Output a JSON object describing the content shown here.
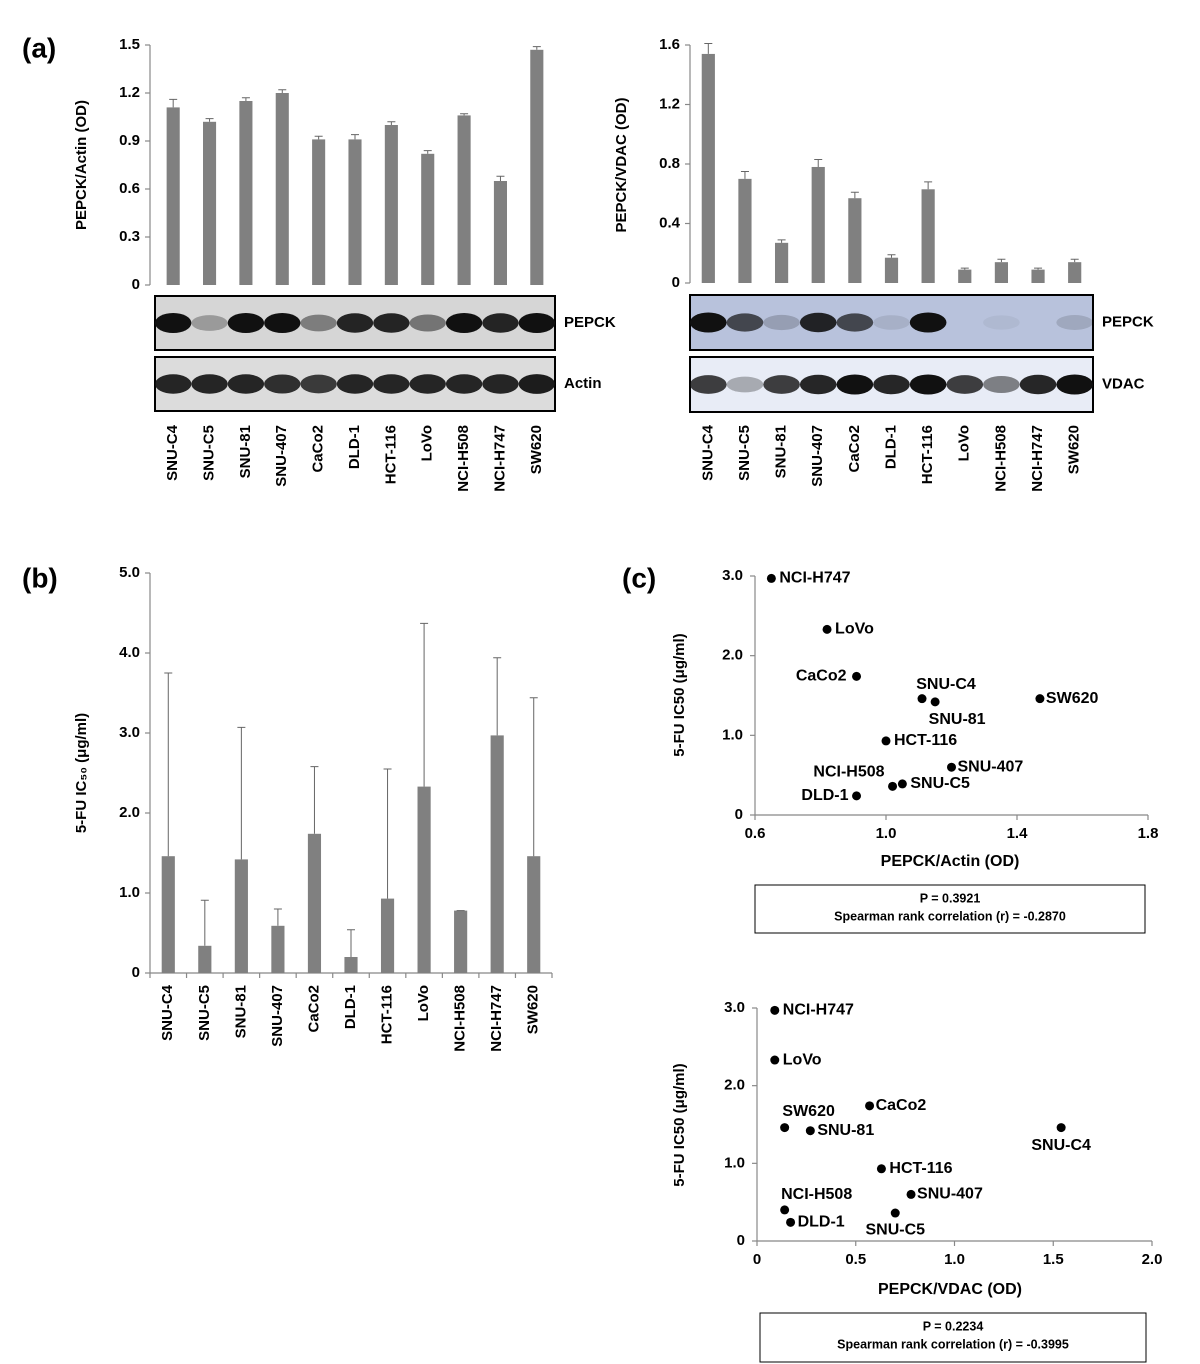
{
  "panel_labels": [
    "(a)",
    "(b)",
    "(c)"
  ],
  "chart_data": [
    {
      "type": "bar",
      "y_label": "PEPCK/Actin (OD)",
      "color": "#808080",
      "categories": [
        "SNU-C4",
        "SNU-C5",
        "SNU-81",
        "SNU-407",
        "CaCo2",
        "DLD-1",
        "HCT-116",
        "LoVo",
        "NCI-H508",
        "NCI-H747",
        "SW620"
      ],
      "values": [
        1.11,
        1.02,
        1.15,
        1.2,
        0.91,
        0.91,
        1.0,
        0.82,
        1.06,
        0.65,
        1.47
      ],
      "errors": [
        0.05,
        0.02,
        0.02,
        0.02,
        0.02,
        0.03,
        0.02,
        0.02,
        0.01,
        0.03,
        0.02
      ],
      "ylim": [
        0,
        1.5
      ],
      "yticks": [
        0,
        0.3,
        0.6,
        0.9,
        1.2,
        1.5
      ],
      "blot_labels": [
        "PEPCK",
        "Actin"
      ]
    },
    {
      "type": "bar",
      "y_label": "PEPCK/VDAC (OD)",
      "color": "#808080",
      "categories": [
        "SNU-C4",
        "SNU-C5",
        "SNU-81",
        "SNU-407",
        "CaCo2",
        "DLD-1",
        "HCT-116",
        "LoVo",
        "NCI-H508",
        "NCI-H747",
        "SW620"
      ],
      "values": [
        1.54,
        0.7,
        0.27,
        0.78,
        0.57,
        0.17,
        0.63,
        0.09,
        0.14,
        0.09,
        0.14
      ],
      "errors": [
        0.07,
        0.05,
        0.02,
        0.05,
        0.04,
        0.02,
        0.05,
        0.01,
        0.02,
        0.01,
        0.02
      ],
      "ylim": [
        0,
        1.6
      ],
      "yticks": [
        0,
        0.4,
        0.8,
        1.2,
        1.6
      ],
      "blot_labels": [
        "PEPCK",
        "VDAC"
      ]
    },
    {
      "type": "bar",
      "y_label": "5-FU IC₅₀ (μg/ml)",
      "color": "#808080",
      "categories": [
        "SNU-C4",
        "SNU-C5",
        "SNU-81",
        "SNU-407",
        "CaCo2",
        "DLD-1",
        "HCT-116",
        "LoVo",
        "NCI-H508",
        "NCI-H747",
        "SW620"
      ],
      "values": [
        1.46,
        0.34,
        1.42,
        0.59,
        1.74,
        0.2,
        0.93,
        2.33,
        0.78,
        2.97,
        1.46
      ],
      "errors": [
        2.29,
        0.57,
        1.65,
        0.21,
        0.84,
        0.34,
        1.62,
        2.04,
        0,
        0.97,
        1.98
      ],
      "ylim": [
        0,
        5
      ],
      "yticks": [
        0,
        {
          "value": 1,
          "label": "1.0"
        },
        {
          "value": 2,
          "label": "2.0"
        },
        {
          "value": 3,
          "label": "3.0"
        },
        {
          "value": 4,
          "label": "4.0"
        },
        {
          "value": 5,
          "label": "5.0"
        }
      ]
    },
    {
      "type": "scatter",
      "x_label": "PEPCK/Actin (OD)",
      "y_label": "5-FU IC50 (μg/ml)",
      "color": "#000000",
      "labels": [
        "SNU-C4",
        "SNU-C5",
        "SNU-81",
        "SNU-407",
        "CaCo2",
        "DLD-1",
        "HCT-116",
        "LoVo",
        "NCI-H508",
        "NCI-H747",
        "SW620"
      ],
      "x": [
        1.11,
        1.05,
        1.15,
        1.2,
        0.91,
        0.91,
        1.0,
        0.82,
        1.02,
        0.65,
        1.47
      ],
      "y": [
        1.46,
        0.39,
        1.42,
        0.6,
        1.74,
        0.24,
        0.93,
        2.33,
        0.36,
        2.97,
        1.46
      ],
      "xlim": [
        0.6,
        1.8
      ],
      "xticks": [
        0.6,
        {
          "value": 1,
          "label": "1.0"
        },
        1.4,
        1.8
      ],
      "ylim": [
        0,
        3
      ],
      "yticks": [
        0,
        {
          "value": 1,
          "label": "1.0"
        },
        {
          "value": 2,
          "label": "2.0"
        },
        {
          "value": 3,
          "label": "3.0"
        }
      ],
      "annotations": [
        "P = 0.3921",
        "Spearman  rank correlation (r) = -0.2870"
      ]
    },
    {
      "type": "scatter",
      "x_label": "PEPCK/VDAC (OD)",
      "y_label": "5-FU IC50 (μg/ml)",
      "color": "#000000",
      "labels": [
        "SNU-C4",
        "SNU-C5",
        "SNU-81",
        "SNU-407",
        "CaCo2",
        "DLD-1",
        "HCT-116",
        "LoVo",
        "NCI-H508",
        "NCI-H747",
        "SW620"
      ],
      "x": [
        1.54,
        0.7,
        0.27,
        0.78,
        0.57,
        0.17,
        0.63,
        0.09,
        0.14,
        0.09,
        0.14
      ],
      "y": [
        1.46,
        0.36,
        1.42,
        0.6,
        1.74,
        0.24,
        0.93,
        2.33,
        0.4,
        2.97,
        1.46
      ],
      "xlim": [
        0,
        2
      ],
      "xticks": [
        0,
        {
          "value": 0.5,
          "label": "0.5"
        },
        {
          "value": 1,
          "label": "1.0"
        },
        {
          "value": 1.5,
          "label": "1.5"
        },
        {
          "value": 2,
          "label": "2.0"
        }
      ],
      "ylim": [
        0,
        3
      ],
      "yticks": [
        0,
        {
          "value": 1,
          "label": "1.0"
        },
        {
          "value": 2,
          "label": "2.0"
        },
        {
          "value": 3,
          "label": "3.0"
        }
      ],
      "annotations": [
        "P = 0.2234",
        "Spearman  rank correlation (r) = -0.3995"
      ]
    }
  ]
}
